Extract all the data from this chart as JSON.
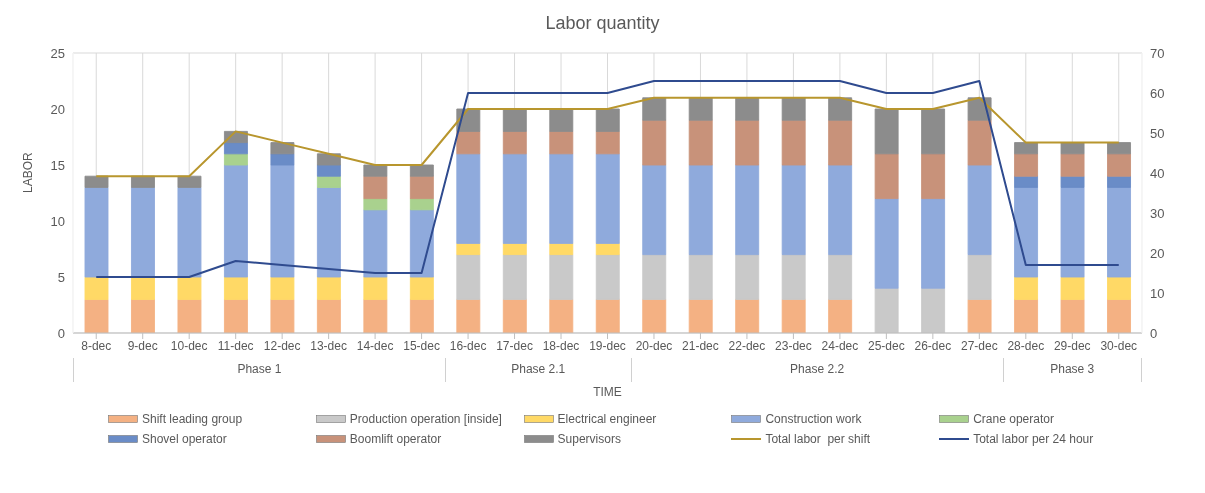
{
  "chart_data": {
    "type": "bar",
    "title": "Labor quantity",
    "xlabel": "TIME",
    "ylabel": "LABOR",
    "stacked": true,
    "grid": true,
    "legend": "bottom",
    "categories": [
      "8-dec",
      "9-dec",
      "10-dec",
      "11-dec",
      "12-dec",
      "13-dec",
      "14-dec",
      "15-dec",
      "16-dec",
      "17-dec",
      "18-dec",
      "19-dec",
      "20-dec",
      "21-dec",
      "22-dec",
      "23-dec",
      "24-dec",
      "25-dec",
      "26-dec",
      "27-dec",
      "28-dec",
      "29-dec",
      "30-dec"
    ],
    "ylim": [
      0,
      25
    ],
    "yticks": [
      0,
      5,
      10,
      15,
      20,
      25
    ],
    "y2lim": [
      0,
      70
    ],
    "y2ticks": [
      0,
      10,
      20,
      30,
      40,
      50,
      60,
      70
    ],
    "annotations": [
      "Phase 1",
      "Phase 2.1",
      "Phase 2.2",
      "Phase 3"
    ],
    "series": [
      {
        "name": "Shift leading group",
        "color": "#f4b183",
        "values": [
          3,
          3,
          3,
          3,
          3,
          3,
          3,
          3,
          3,
          3,
          3,
          3,
          3,
          3,
          3,
          3,
          3,
          0,
          0,
          3,
          3,
          3,
          3
        ]
      },
      {
        "name": "Production operation [inside]",
        "color": "#c9c9c9",
        "values": [
          0,
          0,
          0,
          0,
          0,
          0,
          0,
          0,
          4,
          4,
          4,
          4,
          4,
          4,
          4,
          4,
          4,
          4,
          4,
          4,
          0,
          0,
          0
        ]
      },
      {
        "name": "Electrical engineer",
        "color": "#ffd966",
        "values": [
          2,
          2,
          2,
          2,
          2,
          2,
          2,
          2,
          1,
          1,
          1,
          1,
          0,
          0,
          0,
          0,
          0,
          0,
          0,
          0,
          2,
          2,
          2
        ]
      },
      {
        "name": "Construction work",
        "color": "#8faadc",
        "values": [
          8,
          8,
          8,
          10,
          10,
          8,
          6,
          6,
          8,
          8,
          8,
          8,
          8,
          8,
          8,
          8,
          8,
          8,
          8,
          8,
          8,
          8,
          8
        ]
      },
      {
        "name": "Crane operator",
        "color": "#a9d18e",
        "values": [
          0,
          0,
          0,
          1,
          0,
          1,
          1,
          1,
          0,
          0,
          0,
          0,
          0,
          0,
          0,
          0,
          0,
          0,
          0,
          0,
          0,
          0,
          0
        ]
      },
      {
        "name": "Shovel operator",
        "color": "#6a8cc7",
        "values": [
          0,
          0,
          0,
          1,
          1,
          1,
          0,
          0,
          0,
          0,
          0,
          0,
          0,
          0,
          0,
          0,
          0,
          0,
          0,
          0,
          1,
          1,
          1
        ]
      },
      {
        "name": "Boomlift operator",
        "color": "#c8927a",
        "values": [
          0,
          0,
          0,
          0,
          0,
          0,
          2,
          2,
          2,
          2,
          2,
          2,
          4,
          4,
          4,
          4,
          4,
          4,
          4,
          4,
          2,
          2,
          2
        ]
      },
      {
        "name": "Supervisors",
        "color": "#8c8c8c",
        "values": [
          1,
          1,
          1,
          1,
          1,
          1,
          1,
          1,
          2,
          2,
          2,
          2,
          2,
          2,
          2,
          2,
          2,
          4,
          4,
          2,
          1,
          1,
          1
        ]
      },
      {
        "name": "Total labor  per shift",
        "type": "line",
        "color": "#b8962e",
        "values": [
          14,
          14,
          14,
          18,
          17,
          16,
          15,
          15,
          20,
          20,
          20,
          20,
          21,
          21,
          21,
          21,
          21,
          20,
          20,
          21,
          17,
          17,
          17
        ]
      },
      {
        "name": "Total labor per 24 hour",
        "type": "line",
        "axis": "y2",
        "color": "#2f4b8f",
        "values": [
          14,
          14,
          14,
          18,
          17,
          16,
          15,
          15,
          60,
          60,
          60,
          60,
          63,
          63,
          63,
          63,
          63,
          60,
          60,
          63,
          17,
          17,
          17
        ]
      }
    ]
  }
}
